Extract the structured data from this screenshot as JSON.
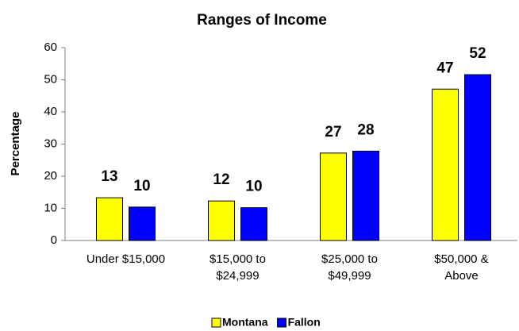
{
  "chart_data": {
    "type": "bar",
    "title": "Ranges of Income",
    "y_label": "Percentage",
    "categories": [
      "Under $15,000",
      "$15,000 to\n$24,999",
      "$25,000 to\n$49,999",
      "$50,000 &\nAbove"
    ],
    "series": [
      {
        "name": "Montana",
        "color": "#ffff00",
        "values": [
          13.3,
          12.3,
          27.2,
          47.1
        ],
        "value_labels": [
          "13",
          "12",
          "27",
          "47"
        ]
      },
      {
        "name": "Fallon",
        "color": "#0000ff",
        "values": [
          10.4,
          10.2,
          27.8,
          51.6
        ],
        "value_labels": [
          "10",
          "10",
          "28",
          "52"
        ]
      }
    ],
    "ylim": [
      0,
      60
    ],
    "yticks": [
      0,
      10,
      20,
      30,
      40,
      50,
      60
    ],
    "grid": false,
    "legend": "bottom"
  }
}
